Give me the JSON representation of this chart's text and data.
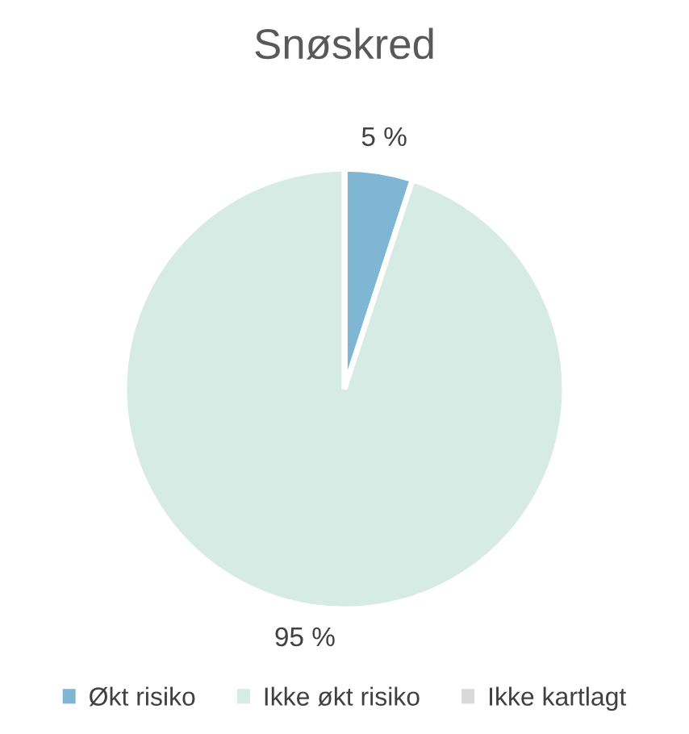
{
  "chart_data": {
    "type": "pie",
    "title": "Snøskred",
    "categories": [
      "Økt risiko",
      "Ikke økt risiko",
      "Ikke kartlagt"
    ],
    "values": [
      5,
      95,
      0
    ],
    "colors": [
      "#7fb6d4",
      "#d5ebe3",
      "#d9d9d9"
    ],
    "value_labels": [
      "5 %",
      "95 %",
      null
    ],
    "legend": "bottom"
  }
}
